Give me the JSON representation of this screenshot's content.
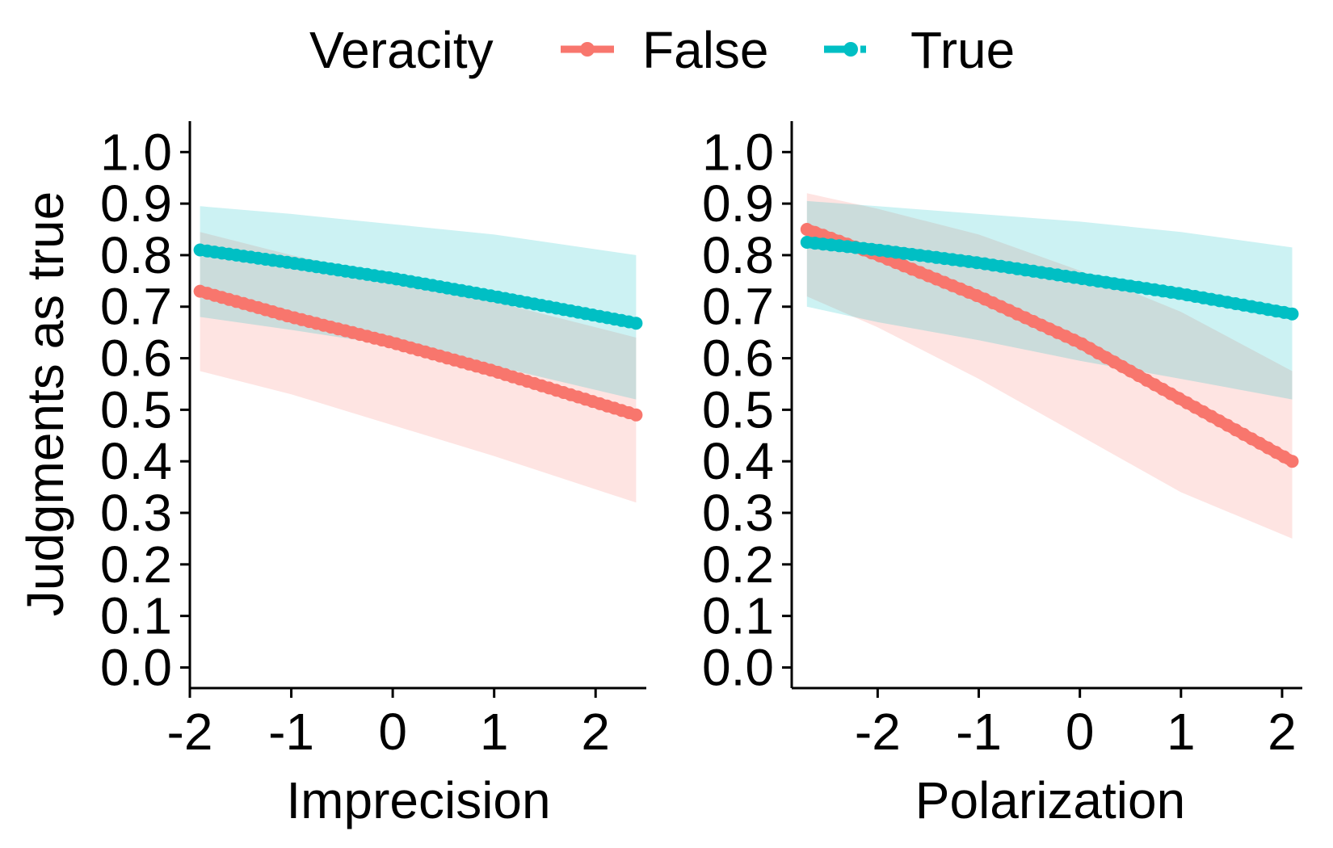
{
  "legend": {
    "title": "Veracity",
    "placement": "top",
    "items": [
      {
        "label": "False",
        "color": "#F8766D"
      },
      {
        "label": "True",
        "color": "#00BFC4"
      }
    ]
  },
  "chart_data": [
    {
      "type": "line",
      "xlabel": "Imprecision",
      "ylabel": "Judgments as true",
      "xlim": [
        -2.0,
        2.5
      ],
      "ylim": [
        -0.04,
        1.06
      ],
      "xticks": [
        -2,
        -1,
        0,
        1,
        2
      ],
      "xtick_labels": [
        "-2",
        "-1",
        "0",
        "1",
        "2"
      ],
      "yticks": [
        0,
        0.1,
        0.2,
        0.3,
        0.4,
        0.5,
        0.6,
        0.7,
        0.8,
        0.9,
        1.0
      ],
      "ytick_labels": [
        "0.0",
        "0.1",
        "0.2",
        "0.3",
        "0.4",
        "0.5",
        "0.6",
        "0.7",
        "0.8",
        "0.9",
        "1.0"
      ],
      "grid": false,
      "series": [
        {
          "name": "False",
          "color": "#F8766D",
          "x": [
            -1.9,
            -1.0,
            0.0,
            1.0,
            2.4
          ],
          "y": [
            0.73,
            0.68,
            0.63,
            0.575,
            0.49
          ],
          "lower": [
            0.575,
            0.53,
            0.47,
            0.41,
            0.32
          ],
          "upper": [
            0.845,
            0.8,
            0.76,
            0.71,
            0.64
          ]
        },
        {
          "name": "True",
          "color": "#00BFC4",
          "x": [
            -1.9,
            -1.0,
            0.0,
            1.0,
            2.4
          ],
          "y": [
            0.81,
            0.785,
            0.755,
            0.72,
            0.668
          ],
          "lower": [
            0.68,
            0.655,
            0.625,
            0.585,
            0.52
          ],
          "upper": [
            0.895,
            0.88,
            0.86,
            0.84,
            0.8
          ]
        }
      ]
    },
    {
      "type": "line",
      "xlabel": "Polarization",
      "ylabel": "",
      "xlim": [
        -2.85,
        2.2
      ],
      "ylim": [
        -0.04,
        1.06
      ],
      "xticks": [
        -2,
        -1,
        0,
        1,
        2
      ],
      "xtick_labels": [
        "-2",
        "-1",
        "0",
        "1",
        "2"
      ],
      "yticks": [
        0,
        0.1,
        0.2,
        0.3,
        0.4,
        0.5,
        0.6,
        0.7,
        0.8,
        0.9,
        1.0
      ],
      "ytick_labels": [
        "0.0",
        "0.1",
        "0.2",
        "0.3",
        "0.4",
        "0.5",
        "0.6",
        "0.7",
        "0.8",
        "0.9",
        "1.0"
      ],
      "grid": false,
      "series": [
        {
          "name": "False",
          "color": "#F8766D",
          "x": [
            -2.7,
            -2.0,
            -1.0,
            0.0,
            1.0,
            2.1
          ],
          "y": [
            0.85,
            0.8,
            0.72,
            0.63,
            0.52,
            0.4
          ],
          "lower": [
            0.72,
            0.66,
            0.56,
            0.45,
            0.34,
            0.25
          ],
          "upper": [
            0.92,
            0.89,
            0.84,
            0.77,
            0.69,
            0.575
          ]
        },
        {
          "name": "True",
          "color": "#00BFC4",
          "x": [
            -2.7,
            -2.0,
            -1.0,
            0.0,
            1.0,
            2.1
          ],
          "y": [
            0.825,
            0.81,
            0.785,
            0.755,
            0.725,
            0.686
          ],
          "lower": [
            0.7,
            0.67,
            0.635,
            0.595,
            0.56,
            0.52
          ],
          "upper": [
            0.905,
            0.895,
            0.88,
            0.865,
            0.845,
            0.815
          ]
        }
      ]
    }
  ]
}
